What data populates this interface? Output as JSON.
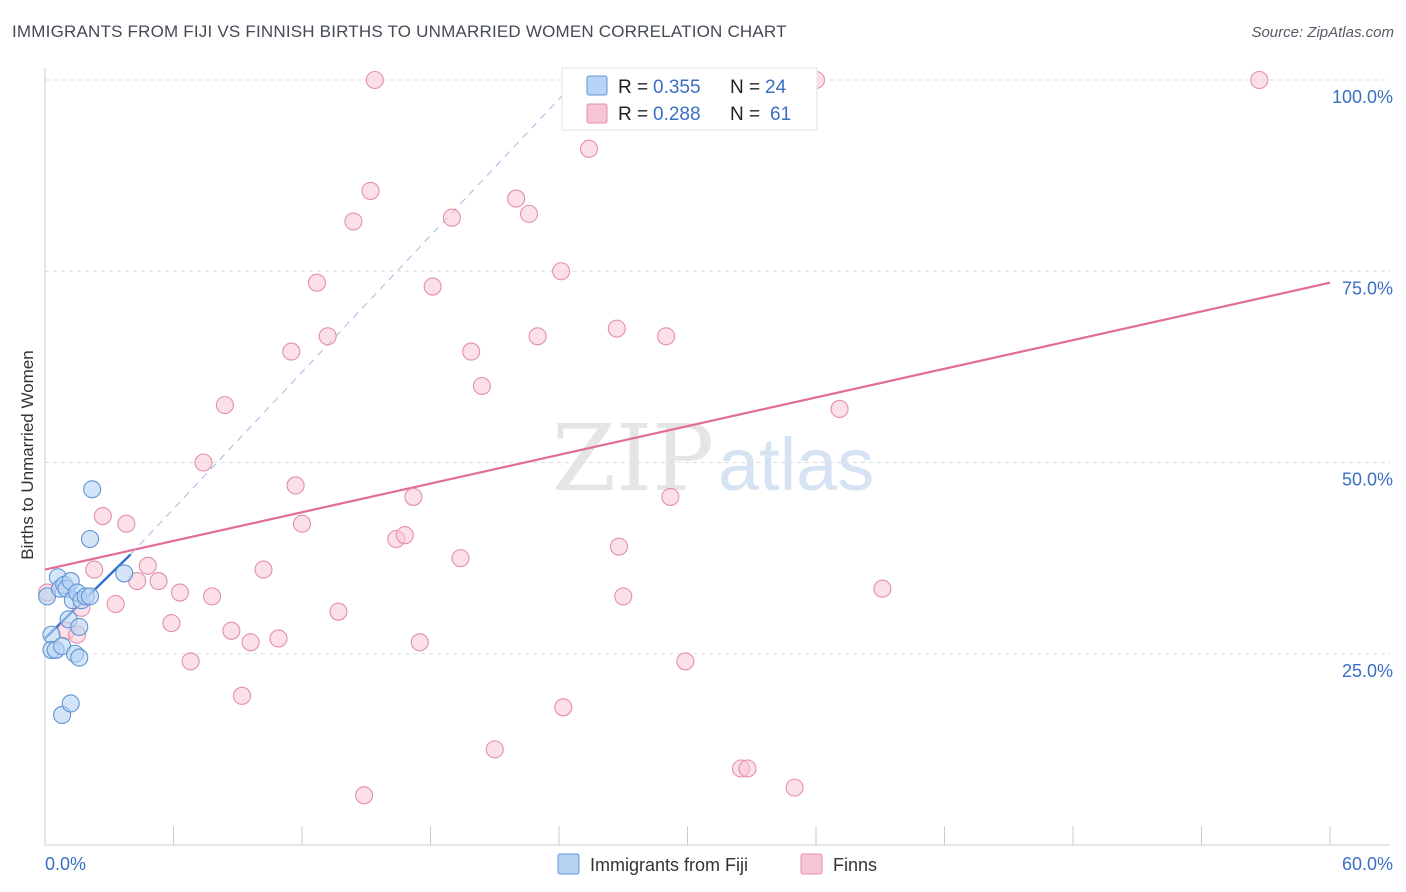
{
  "header": {
    "title": "IMMIGRANTS FROM FIJI VS FINNISH BIRTHS TO UNMARRIED WOMEN CORRELATION CHART",
    "source": "Source: ZipAtlas.com"
  },
  "watermark": {
    "zip": "ZIP",
    "atlas": "atlas"
  },
  "colors": {
    "fiji_fill": "#b8d4f4",
    "fiji_stroke": "#5f95d6",
    "fiji_line": "#2e6fd0",
    "finns_fill": "#f7c6d6",
    "finns_stroke": "#e58eab",
    "finns_line": "#e26c96",
    "axis_text": "#3a6fc4",
    "grid": "#d8dbe0"
  },
  "legend": {
    "fiji": {
      "r_label": "R = ",
      "r_value": "0.355",
      "n_label": "N = ",
      "n_value": "24"
    },
    "finns": {
      "r_label": "R = ",
      "r_value": "0.288",
      "n_label": "N = ",
      "n_value": "61"
    }
  },
  "chart_data": {
    "type": "scatter",
    "title": "IMMIGRANTS FROM FIJI VS FINNISH BIRTHS TO UNMARRIED WOMEN CORRELATION CHART",
    "xlabel": "",
    "ylabel": "Births to Unmarried Women",
    "xlim": [
      0,
      60
    ],
    "ylim": [
      0,
      102
    ],
    "x_tick_labels": [
      "0.0%",
      "60.0%"
    ],
    "y_ticks": [
      25,
      50,
      75,
      100
    ],
    "y_tick_labels": [
      "25.0%",
      "50.0%",
      "75.0%",
      "100.0%"
    ],
    "grid": true,
    "legend_position": "top-center",
    "bottom_legend": [
      "Immigrants from Fiji",
      "Finns"
    ],
    "series": [
      {
        "name": "Immigrants from Fiji",
        "r": 0.355,
        "n": 24,
        "points": [
          [
            0.1,
            32.5
          ],
          [
            0.3,
            27.5
          ],
          [
            0.3,
            25.5
          ],
          [
            0.5,
            25.5
          ],
          [
            0.6,
            35.0
          ],
          [
            0.7,
            33.5
          ],
          [
            0.8,
            26.0
          ],
          [
            0.8,
            17.0
          ],
          [
            0.9,
            34.0
          ],
          [
            1.0,
            33.5
          ],
          [
            1.1,
            29.5
          ],
          [
            1.2,
            34.5
          ],
          [
            1.2,
            18.5
          ],
          [
            1.3,
            32.0
          ],
          [
            1.4,
            25.0
          ],
          [
            1.5,
            33.0
          ],
          [
            1.6,
            24.5
          ],
          [
            1.6,
            28.5
          ],
          [
            1.7,
            32.0
          ],
          [
            1.9,
            32.5
          ],
          [
            2.1,
            32.5
          ],
          [
            2.1,
            40.0
          ],
          [
            2.2,
            46.5
          ],
          [
            3.7,
            35.5
          ]
        ],
        "trend": {
          "x0": 0,
          "y0": 27.0,
          "x1": 4.0,
          "y1": 38.0
        },
        "trend_extension": {
          "x0": 4.0,
          "y0": 38.0,
          "x1": 24.5,
          "y1": 99.0
        }
      },
      {
        "name": "Finns",
        "r": 0.288,
        "n": 61,
        "points": [
          [
            0.1,
            33.0
          ],
          [
            1.0,
            28.0
          ],
          [
            1.5,
            27.5
          ],
          [
            1.7,
            31.0
          ],
          [
            2.3,
            36.0
          ],
          [
            2.7,
            43.0
          ],
          [
            3.3,
            31.5
          ],
          [
            3.8,
            42.0
          ],
          [
            4.3,
            34.5
          ],
          [
            4.8,
            36.5
          ],
          [
            5.3,
            34.5
          ],
          [
            5.9,
            29.0
          ],
          [
            6.3,
            33.0
          ],
          [
            6.8,
            24.0
          ],
          [
            7.4,
            50.0
          ],
          [
            7.8,
            32.5
          ],
          [
            8.4,
            57.5
          ],
          [
            8.7,
            28.0
          ],
          [
            9.2,
            19.5
          ],
          [
            9.6,
            26.5
          ],
          [
            10.2,
            36.0
          ],
          [
            10.9,
            27.0
          ],
          [
            11.5,
            64.5
          ],
          [
            11.7,
            47.0
          ],
          [
            12.0,
            42.0
          ],
          [
            12.7,
            73.5
          ],
          [
            13.2,
            66.5
          ],
          [
            13.7,
            30.5
          ],
          [
            14.4,
            81.5
          ],
          [
            14.9,
            6.5
          ],
          [
            15.2,
            85.5
          ],
          [
            15.4,
            100.0
          ],
          [
            16.4,
            40.0
          ],
          [
            16.8,
            40.5
          ],
          [
            17.2,
            45.5
          ],
          [
            17.5,
            26.5
          ],
          [
            18.1,
            73.0
          ],
          [
            19.0,
            82.0
          ],
          [
            19.4,
            37.5
          ],
          [
            19.9,
            64.5
          ],
          [
            20.4,
            60.0
          ],
          [
            21.0,
            12.5
          ],
          [
            22.0,
            84.5
          ],
          [
            22.6,
            82.5
          ],
          [
            23.0,
            66.5
          ],
          [
            24.1,
            75.0
          ],
          [
            24.2,
            18.0
          ],
          [
            25.4,
            91.0
          ],
          [
            26.7,
            67.5
          ],
          [
            26.8,
            39.0
          ],
          [
            27.0,
            32.5
          ],
          [
            29.0,
            66.5
          ],
          [
            29.2,
            45.5
          ],
          [
            29.9,
            24.0
          ],
          [
            32.5,
            10.0
          ],
          [
            32.8,
            10.0
          ],
          [
            35.0,
            7.5
          ],
          [
            36.0,
            100.0
          ],
          [
            37.1,
            57.0
          ],
          [
            39.1,
            33.5
          ],
          [
            56.7,
            100.0
          ]
        ],
        "trend": {
          "x0": 0,
          "y0": 36.0,
          "x1": 60,
          "y1": 73.5
        }
      }
    ]
  }
}
